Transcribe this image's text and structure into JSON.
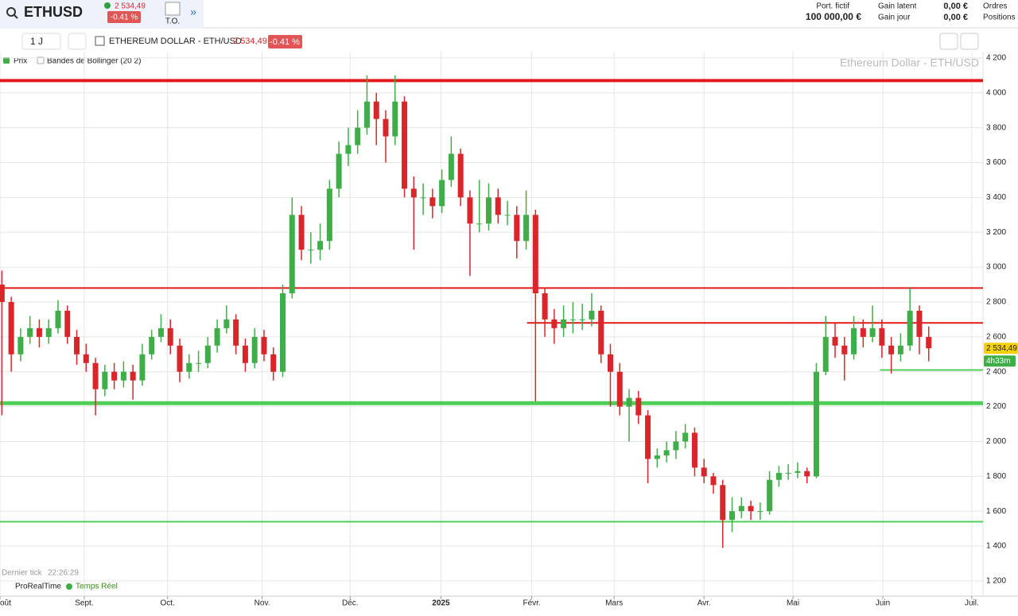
{
  "header": {
    "symbol": "ETHUSD",
    "price": "2 534,49",
    "change": "-0.41 %",
    "to": "T.O.",
    "portfolio_label": "Port. fictif",
    "portfolio_value": "100 000,00 €",
    "gain_latent_label": "Gain latent",
    "gain_latent": "0,00 €",
    "gain_jour_label": "Gain jour",
    "gain_jour": "0,00 €",
    "orders": "Ordres",
    "positions": "Positions"
  },
  "toolbar": {
    "period": "1 J",
    "instrument": "ETHEREUM DOLLAR - ETH/USD",
    "price": "2 534,49",
    "change": "-0.41 %"
  },
  "footer": {
    "last_tick_label": "Dernier tick",
    "last_tick": "22:26:29",
    "brand": "ProRealTime",
    "realtime": "Temps Réel"
  },
  "chart_data": {
    "type": "candlestick",
    "watermark": "Ethereum Dollar - ETH/USD",
    "indicators": [
      "Bandes de Bollinger (20 2)"
    ],
    "series": [
      {
        "name": "Prix",
        "up_color": "#3fae49",
        "down_color": "#d9262b",
        "values": [
          [
            2900,
            2980,
            2150,
            2800
          ],
          [
            2800,
            2830,
            2400,
            2500
          ],
          [
            2500,
            2650,
            2460,
            2600
          ],
          [
            2600,
            2720,
            2560,
            2650
          ],
          [
            2650,
            2700,
            2540,
            2600
          ],
          [
            2600,
            2700,
            2560,
            2650
          ],
          [
            2650,
            2810,
            2620,
            2750
          ],
          [
            2750,
            2780,
            2560,
            2600
          ],
          [
            2600,
            2640,
            2440,
            2500
          ],
          [
            2500,
            2560,
            2400,
            2450
          ],
          [
            2450,
            2480,
            2150,
            2300
          ],
          [
            2300,
            2440,
            2260,
            2400
          ],
          [
            2400,
            2450,
            2300,
            2350
          ],
          [
            2350,
            2460,
            2310,
            2400
          ],
          [
            2400,
            2440,
            2240,
            2350
          ],
          [
            2350,
            2560,
            2320,
            2500
          ],
          [
            2500,
            2640,
            2470,
            2600
          ],
          [
            2600,
            2730,
            2570,
            2650
          ],
          [
            2650,
            2700,
            2500,
            2550
          ],
          [
            2550,
            2590,
            2340,
            2400
          ],
          [
            2400,
            2500,
            2360,
            2450
          ],
          [
            2450,
            2520,
            2400,
            2450
          ],
          [
            2450,
            2600,
            2420,
            2550
          ],
          [
            2550,
            2700,
            2510,
            2650
          ],
          [
            2650,
            2780,
            2620,
            2700
          ],
          [
            2700,
            2730,
            2500,
            2550
          ],
          [
            2550,
            2590,
            2400,
            2450
          ],
          [
            2450,
            2650,
            2420,
            2600
          ],
          [
            2600,
            2640,
            2460,
            2500
          ],
          [
            2500,
            2540,
            2350,
            2400
          ],
          [
            2400,
            2900,
            2370,
            2850
          ],
          [
            2850,
            3400,
            2820,
            3300
          ],
          [
            3300,
            3350,
            3040,
            3100
          ],
          [
            3100,
            3200,
            3020,
            3100
          ],
          [
            3100,
            3250,
            3040,
            3150
          ],
          [
            3150,
            3500,
            3100,
            3450
          ],
          [
            3450,
            3720,
            3400,
            3650
          ],
          [
            3650,
            3800,
            3580,
            3700
          ],
          [
            3700,
            3900,
            3650,
            3800
          ],
          [
            3800,
            4100,
            3760,
            3950
          ],
          [
            3950,
            4000,
            3700,
            3850
          ],
          [
            3850,
            3900,
            3600,
            3750
          ],
          [
            3750,
            4100,
            3700,
            3950
          ],
          [
            3950,
            3980,
            3400,
            3450
          ],
          [
            3450,
            3520,
            3100,
            3400
          ],
          [
            3400,
            3480,
            3300,
            3400
          ],
          [
            3400,
            3450,
            3280,
            3350
          ],
          [
            3350,
            3560,
            3310,
            3500
          ],
          [
            3500,
            3750,
            3460,
            3650
          ],
          [
            3650,
            3680,
            3350,
            3400
          ],
          [
            3400,
            3440,
            2950,
            3250
          ],
          [
            3250,
            3500,
            3200,
            3250
          ],
          [
            3250,
            3480,
            3210,
            3400
          ],
          [
            3400,
            3450,
            3250,
            3300
          ],
          [
            3300,
            3380,
            3240,
            3300
          ],
          [
            3300,
            3350,
            3050,
            3150
          ],
          [
            3150,
            3440,
            3100,
            3300
          ],
          [
            3300,
            3330,
            2230,
            2850
          ],
          [
            2850,
            2880,
            2600,
            2700
          ],
          [
            2700,
            2760,
            2560,
            2650
          ],
          [
            2650,
            2780,
            2600,
            2700
          ],
          [
            2700,
            2800,
            2620,
            2700
          ],
          [
            2700,
            2790,
            2640,
            2700
          ],
          [
            2700,
            2850,
            2660,
            2750
          ],
          [
            2750,
            2780,
            2450,
            2500
          ],
          [
            2500,
            2560,
            2200,
            2400
          ],
          [
            2400,
            2450,
            2150,
            2200
          ],
          [
            2200,
            2300,
            2000,
            2250
          ],
          [
            2250,
            2290,
            2100,
            2150
          ],
          [
            2150,
            2180,
            1760,
            1900
          ],
          [
            1900,
            1960,
            1850,
            1920
          ],
          [
            1920,
            2000,
            1880,
            1950
          ],
          [
            1950,
            2060,
            1900,
            2000
          ],
          [
            2000,
            2100,
            1960,
            2050
          ],
          [
            2050,
            2080,
            1800,
            1850
          ],
          [
            1850,
            1900,
            1760,
            1800
          ],
          [
            1800,
            1820,
            1700,
            1750
          ],
          [
            1750,
            1780,
            1390,
            1550
          ],
          [
            1550,
            1680,
            1480,
            1600
          ],
          [
            1600,
            1680,
            1560,
            1630
          ],
          [
            1630,
            1660,
            1550,
            1600
          ],
          [
            1600,
            1650,
            1550,
            1600
          ],
          [
            1600,
            1830,
            1580,
            1780
          ],
          [
            1780,
            1860,
            1740,
            1820
          ],
          [
            1820,
            1870,
            1780,
            1820
          ],
          [
            1820,
            1880,
            1790,
            1830
          ],
          [
            1830,
            1850,
            1760,
            1800
          ],
          [
            1800,
            2450,
            1790,
            2400
          ],
          [
            2400,
            2720,
            2380,
            2600
          ],
          [
            2600,
            2680,
            2480,
            2550
          ],
          [
            2550,
            2600,
            2350,
            2500
          ],
          [
            2500,
            2720,
            2470,
            2650
          ],
          [
            2650,
            2700,
            2540,
            2600
          ],
          [
            2600,
            2780,
            2570,
            2650
          ],
          [
            2650,
            2700,
            2480,
            2550
          ],
          [
            2550,
            2600,
            2390,
            2500
          ],
          [
            2500,
            2620,
            2460,
            2550
          ],
          [
            2550,
            2880,
            2520,
            2750
          ],
          [
            2750,
            2780,
            2500,
            2600
          ],
          [
            2600,
            2660,
            2460,
            2534.49
          ]
        ]
      }
    ],
    "last_price": {
      "value": 2534.49,
      "label": "2 534,49"
    },
    "timer": "4h33m",
    "levels": [
      {
        "value": 4070,
        "color": "#e31a1c",
        "width": 4,
        "from": -0.2
      },
      {
        "value": 2880,
        "color": "#e31a1c",
        "width": 2,
        "from": -0.2
      },
      {
        "value": 2680,
        "color": "#e31a1c",
        "width": 2,
        "from": 56.1
      },
      {
        "value": 2220,
        "color": "#4fcf5a",
        "width": 5,
        "from": -0.2
      },
      {
        "value": 1540,
        "color": "#4fcf5a",
        "width": 2,
        "from": -0.2
      },
      {
        "value": 2410,
        "color": "#4fcf5a",
        "width": 2,
        "from": 93.8
      }
    ],
    "ylim": [
      1113,
      4236
    ],
    "yticks": [
      {
        "value": 1200,
        "label": "1 200"
      },
      {
        "value": 1400,
        "label": "1 400"
      },
      {
        "value": 1600,
        "label": "1 600"
      },
      {
        "value": 1800,
        "label": "1 800"
      },
      {
        "value": 2000,
        "label": "2 000"
      },
      {
        "value": 2200,
        "label": "2 200"
      },
      {
        "value": 2400,
        "label": "2 400"
      },
      {
        "value": 2600,
        "label": "2 600"
      },
      {
        "value": 2800,
        "label": "2 800"
      },
      {
        "value": 3000,
        "label": "3 000"
      },
      {
        "value": 3200,
        "label": "3 200"
      },
      {
        "value": 3400,
        "label": "3 400"
      },
      {
        "value": 3600,
        "label": "3 600"
      },
      {
        "value": 3800,
        "label": "3 800"
      },
      {
        "value": 4000,
        "label": "4 000"
      },
      {
        "value": 4200,
        "label": "4 200"
      }
    ],
    "xlim": [
      -0.2,
      104.8
    ],
    "xticks": [
      {
        "value": -0.2,
        "label": "oût"
      },
      {
        "value": 8.8,
        "label": "Sept."
      },
      {
        "value": 17.7,
        "label": "Oct."
      },
      {
        "value": 27.8,
        "label": "Nov."
      },
      {
        "value": 37.2,
        "label": "Déc."
      },
      {
        "value": 46.9,
        "label": "2025"
      },
      {
        "value": 56.6,
        "label": "Févr."
      },
      {
        "value": 65.4,
        "label": "Mars"
      },
      {
        "value": 75,
        "label": "Avr."
      },
      {
        "value": 84.5,
        "label": "Mai"
      },
      {
        "value": 94.1,
        "label": "Juin"
      },
      {
        "value": 103.6,
        "label": "Juil."
      }
    ],
    "grid": true
  }
}
